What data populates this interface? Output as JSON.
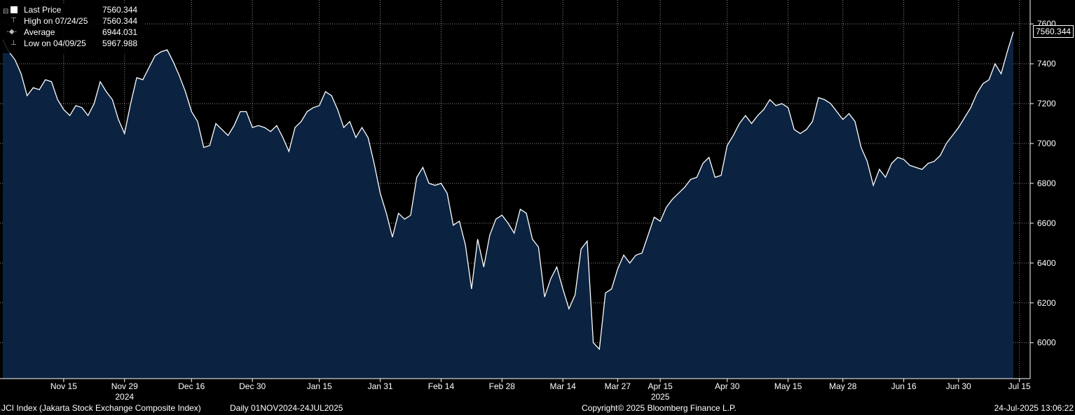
{
  "legend": {
    "last_price_label": "Last Price",
    "last_price_value": "7560.344",
    "high_label": "High on 07/24/25",
    "high_value": "7560.344",
    "average_label": "Average",
    "average_value": "6944.031",
    "low_label": "Low on 04/09/25",
    "low_value": "5967.988"
  },
  "footer": {
    "index_name": "JCI Index (Jakarta Stock Exchange Composite Index)",
    "range": "Daily 01NOV2024-24JUL2025",
    "copyright": "Copyright© 2025 Bloomberg Finance L.P.",
    "timestamp": "24-Jul-2025 13:06:22"
  },
  "last_price_tag": "7560.344",
  "colors": {
    "background": "#000000",
    "area_fill": "#0b2340",
    "line": "#ffffff",
    "grid": "#8a8a8a"
  },
  "chart_data": {
    "type": "area",
    "series": [
      {
        "name": "Last Price",
        "values": [
          7520,
          7460,
          7420,
          7350,
          7240,
          7280,
          7270,
          7320,
          7310,
          7220,
          7170,
          7140,
          7190,
          7180,
          7140,
          7200,
          7310,
          7260,
          7220,
          7120,
          7050,
          7200,
          7330,
          7320,
          7380,
          7440,
          7460,
          7470,
          7410,
          7340,
          7260,
          7160,
          7110,
          6980,
          6990,
          7100,
          7070,
          7040,
          7090,
          7160,
          7160,
          7080,
          7090,
          7080,
          7060,
          7090,
          7030,
          6960,
          7080,
          7110,
          7160,
          7180,
          7190,
          7260,
          7240,
          7170,
          7080,
          7110,
          7030,
          7080,
          7030,
          6900,
          6750,
          6650,
          6530,
          6650,
          6620,
          6640,
          6830,
          6880,
          6800,
          6790,
          6800,
          6750,
          6590,
          6610,
          6490,
          6270,
          6520,
          6380,
          6540,
          6620,
          6640,
          6600,
          6550,
          6670,
          6650,
          6520,
          6480,
          6230,
          6320,
          6380,
          6270,
          6170,
          6240,
          6470,
          6510,
          6000,
          5968,
          6250,
          6270,
          6370,
          6440,
          6400,
          6440,
          6450,
          6540,
          6630,
          6610,
          6680,
          6720,
          6750,
          6780,
          6820,
          6830,
          6900,
          6930,
          6830,
          6840,
          6990,
          7040,
          7100,
          7140,
          7100,
          7140,
          7170,
          7220,
          7190,
          7200,
          7180,
          7070,
          7050,
          7070,
          7110,
          7230,
          7220,
          7200,
          7160,
          7120,
          7150,
          7110,
          6980,
          6910,
          6790,
          6870,
          6830,
          6900,
          6930,
          6920,
          6890,
          6880,
          6870,
          6900,
          6910,
          6940,
          7000,
          7040,
          7080,
          7130,
          7180,
          7250,
          7300,
          7320,
          7400,
          7350,
          7460,
          7560.344
        ]
      }
    ],
    "x_ticks": [
      {
        "label": "Nov 15",
        "index": 10
      },
      {
        "label": "Nov 29",
        "index": 20
      },
      {
        "label": "Dec 16",
        "index": 31
      },
      {
        "label": "Dec 30",
        "index": 41
      },
      {
        "label": "Jan 15",
        "index": 52
      },
      {
        "label": "Jan 31",
        "index": 62
      },
      {
        "label": "Feb 14",
        "index": 72
      },
      {
        "label": "Feb 28",
        "index": 82
      },
      {
        "label": "Mar 14",
        "index": 92
      },
      {
        "label": "Mar 27",
        "index": 101
      },
      {
        "label": "Apr 15",
        "index": 108
      },
      {
        "label": "Apr 30",
        "index": 119
      },
      {
        "label": "May 15",
        "index": 129
      },
      {
        "label": "May 28",
        "index": 138
      },
      {
        "label": "Jun 16",
        "index": 148
      },
      {
        "label": "Jun 30",
        "index": 157
      },
      {
        "label": "Jul 15",
        "index": 167
      }
    ],
    "year_labels": [
      {
        "label": "2024",
        "index": 20
      },
      {
        "label": "2025",
        "index": 108
      }
    ],
    "y_ticks": [
      6000,
      6200,
      6400,
      6600,
      6800,
      7000,
      7200,
      7400,
      7600
    ],
    "ylim": [
      5820,
      7720
    ],
    "grid": true,
    "legend_position": "top-left"
  }
}
